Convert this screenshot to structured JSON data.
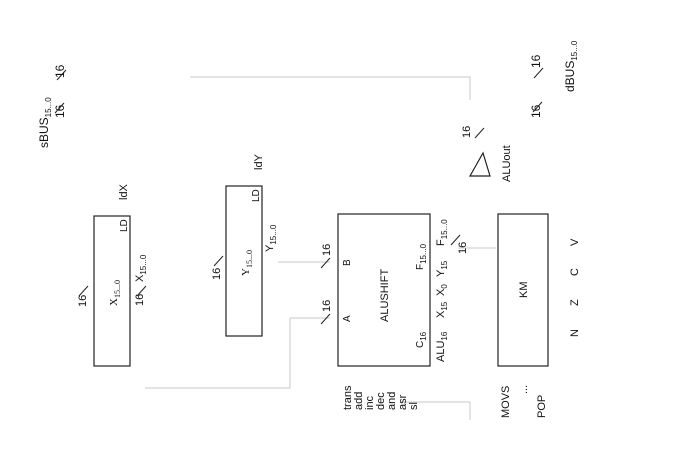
{
  "buses": {
    "sbus": "sBUS",
    "sbus_sub": "15...0",
    "dbus": "dBUS",
    "dbus_sub": "15...0",
    "width": "16"
  },
  "reg_x": {
    "name": "X",
    "name_sub": "15...0",
    "ld": "LD",
    "ctrl": "ldX",
    "out": "X",
    "out_sub": "15...0",
    "width": "16"
  },
  "reg_y": {
    "name": "Y",
    "name_sub": "15...0",
    "ld": "LD",
    "ctrl": "ldY",
    "out": "Y",
    "out_sub": "15...0",
    "width": "16"
  },
  "alu": {
    "name": "ALUSHIFT",
    "port_a": "A",
    "port_b": "B",
    "port_f": "F",
    "port_f_sub": "15...0",
    "port_c": "C",
    "port_c_sub": "16",
    "out_f": "F",
    "out_f_sub": "15...0",
    "width": "16",
    "ops": [
      "trans",
      "add",
      "inc",
      "dec",
      "and",
      "asr",
      "sl"
    ]
  },
  "aluout": {
    "label": "ALUout",
    "width": "16"
  },
  "flags_in": {
    "alu16": "ALU",
    "alu16_sub": "16",
    "x15": "X",
    "x15_sub": "15",
    "x0": "X",
    "x0_sub": "0",
    "y15": "Y",
    "y15_sub": "15"
  },
  "km": {
    "name": "KM",
    "flags": [
      "N",
      "Z",
      "C",
      "V"
    ],
    "ops_top": "MOVS",
    "ops_dots": "...",
    "ops_bottom": "POP"
  }
}
